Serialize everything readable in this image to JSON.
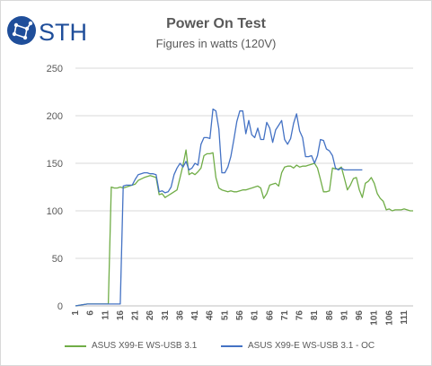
{
  "logo_text": "STH",
  "chart_data": {
    "type": "line",
    "title": "Power On Test",
    "subtitle": "Figures in watts (120V)",
    "xlabel": "",
    "ylabel": "",
    "ylim": [
      0,
      250
    ],
    "yticks": [
      0,
      50,
      100,
      150,
      200,
      250
    ],
    "xlim": [
      1,
      114
    ],
    "xticks": [
      1,
      6,
      11,
      16,
      21,
      26,
      31,
      36,
      41,
      46,
      51,
      56,
      61,
      66,
      71,
      76,
      81,
      86,
      91,
      96,
      101,
      106,
      111
    ],
    "grid": true,
    "legend_position": "bottom",
    "series": [
      {
        "name": "ASUS X99-E WS-USB 3.1",
        "color": "#70ad47",
        "x": [
          1,
          3,
          5,
          9,
          12,
          13,
          14,
          15,
          16,
          17,
          18,
          19,
          20,
          21,
          22,
          24,
          25,
          26,
          27,
          28,
          29,
          30,
          31,
          32,
          33,
          34,
          35,
          36,
          37,
          38,
          39,
          40,
          41,
          42,
          43,
          44,
          45,
          46,
          47,
          48,
          49,
          50,
          51,
          52,
          53,
          54,
          55,
          56,
          57,
          58,
          59,
          60,
          61,
          62,
          63,
          64,
          65,
          66,
          67,
          68,
          69,
          70,
          71,
          72,
          73,
          74,
          75,
          76,
          77,
          78,
          79,
          80,
          81,
          82,
          83,
          84,
          85,
          86,
          87,
          88,
          89,
          90,
          91,
          92,
          93,
          94,
          95,
          96,
          97,
          98,
          99,
          100,
          101,
          102,
          103,
          104,
          105,
          106,
          107,
          108,
          109,
          110,
          111,
          112,
          113,
          114
        ],
        "y": [
          0,
          1,
          2,
          2,
          2,
          125,
          124,
          124,
          125,
          124,
          125,
          126,
          127,
          128,
          132,
          135,
          136,
          137,
          136,
          135,
          117,
          118,
          114,
          116,
          118,
          120,
          122,
          135,
          148,
          164,
          138,
          140,
          138,
          141,
          145,
          158,
          160,
          160,
          161,
          135,
          124,
          122,
          121,
          120,
          121,
          120,
          120,
          121,
          122,
          122,
          123,
          124,
          125,
          126,
          124,
          113,
          118,
          127,
          128,
          129,
          126,
          140,
          146,
          147,
          147,
          145,
          148,
          146,
          147,
          147,
          148,
          149,
          150,
          145,
          133,
          120,
          120,
          121,
          145,
          144,
          144,
          146,
          134,
          122,
          127,
          134,
          135,
          122,
          114,
          129,
          131,
          135,
          129,
          118,
          113,
          110,
          101,
          102,
          100,
          101,
          101,
          101,
          102,
          101,
          100,
          100
        ],
        "x_explicit": true
      },
      {
        "name": "ASUS X99-E WS-USB 3.1 - OC",
        "color": "#4472c4",
        "x": [
          1,
          3,
          5,
          9,
          12,
          13,
          14,
          15,
          16,
          17,
          18,
          19,
          20,
          21,
          22,
          24,
          25,
          26,
          27,
          28,
          29,
          30,
          31,
          32,
          33,
          34,
          35,
          36,
          37,
          38,
          39,
          40,
          41,
          42,
          43,
          44,
          45,
          46,
          47,
          48,
          49,
          50,
          51,
          52,
          53,
          54,
          55,
          56,
          57,
          58,
          59,
          60,
          61,
          62,
          63,
          64,
          65,
          66,
          67,
          68,
          69,
          70,
          71,
          72,
          73,
          74,
          75,
          76,
          77,
          78,
          79,
          80,
          81,
          82,
          83,
          84,
          85,
          86,
          87,
          88,
          89,
          90,
          91,
          92,
          93,
          94,
          95,
          96,
          97
        ],
        "y": [
          0,
          1,
          2,
          2,
          2,
          2,
          2,
          2,
          2,
          126,
          127,
          127,
          127,
          133,
          138,
          140,
          140,
          139,
          139,
          138,
          120,
          121,
          119,
          120,
          125,
          138,
          145,
          150,
          146,
          152,
          143,
          145,
          150,
          148,
          170,
          177,
          177,
          176,
          207,
          205,
          186,
          140,
          140,
          146,
          157,
          175,
          194,
          205,
          205,
          181,
          195,
          180,
          177,
          187,
          175,
          175,
          193,
          187,
          172,
          185,
          190,
          195,
          175,
          170,
          176,
          192,
          202,
          184,
          177,
          157,
          157,
          158,
          150,
          158,
          175,
          174,
          165,
          163,
          158,
          145,
          143,
          145,
          143,
          143,
          143,
          143,
          143,
          143,
          143
        ],
        "x_explicit": true
      }
    ]
  }
}
